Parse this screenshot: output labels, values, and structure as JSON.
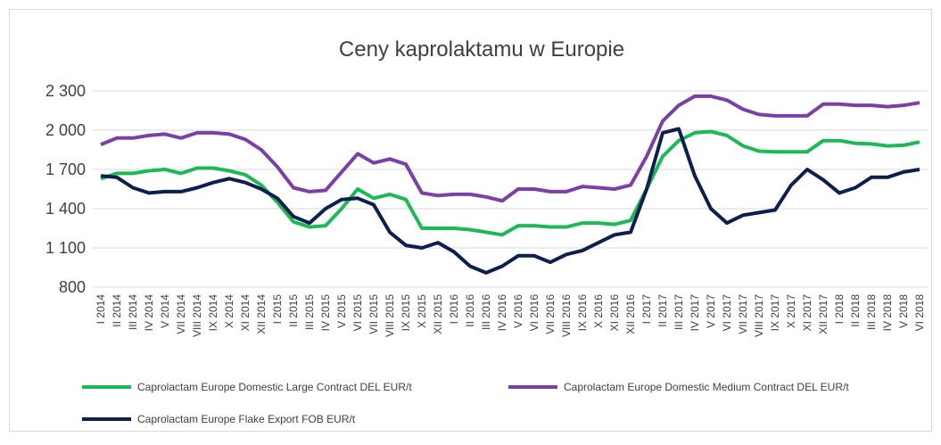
{
  "chart_data": {
    "type": "line",
    "title": "Ceny kaprolaktamu w Europie",
    "categories": [
      "I 2014",
      "II 2014",
      "III 2014",
      "IV 2014",
      "V 2014",
      "VII 2014",
      "VIII 2014",
      "IX 2014",
      "X 2014",
      "XI 2014",
      "XII 2014",
      "I 2015",
      "II 2015",
      "III 2015",
      "IV 2015",
      "V 2015",
      "VI 2015",
      "VII 2015",
      "VIII 2015",
      "IX 2015",
      "X 2015",
      "XII 2015",
      "I 2016",
      "II 2016",
      "III 2016",
      "IV 2016",
      "V 2016",
      "VI 2016",
      "VII 2016",
      "VIII 2016",
      "IX 2016",
      "X 2016",
      "XI 2016",
      "XII 2016",
      "I 2017",
      "II 2017",
      "III 2017",
      "IV 2017",
      "V 2017",
      "VI 2017",
      "VII 2017",
      "VIII 2017",
      "IX 2017",
      "X 2017",
      "XI 2017",
      "XII 2017",
      "I 2018",
      "II 2018",
      "III 2018",
      "IV 2018",
      "V 2018",
      "VI 2018"
    ],
    "series": [
      {
        "name": "Caprolactam Europe Domestic Large Contract DEL EUR/t",
        "color": "#1db954",
        "values": [
          1630,
          1670,
          1670,
          1690,
          1700,
          1670,
          1710,
          1710,
          1690,
          1660,
          1580,
          1450,
          1300,
          1260,
          1270,
          1400,
          1550,
          1480,
          1510,
          1470,
          1250,
          1250,
          1250,
          1240,
          1220,
          1200,
          1270,
          1270,
          1260,
          1260,
          1290,
          1290,
          1280,
          1310,
          1550,
          1800,
          1920,
          1980,
          1990,
          1960,
          1880,
          1840,
          1835,
          1835,
          1835,
          1920,
          1920,
          1900,
          1895,
          1880,
          1885,
          1910
        ]
      },
      {
        "name": "Caprolactam Europe Domestic Medium Contract DEL EUR/t",
        "color": "#7b3fa8",
        "values": [
          1890,
          1940,
          1940,
          1960,
          1970,
          1940,
          1980,
          1980,
          1970,
          1930,
          1850,
          1720,
          1560,
          1530,
          1540,
          1680,
          1820,
          1750,
          1780,
          1740,
          1520,
          1500,
          1510,
          1510,
          1490,
          1460,
          1550,
          1550,
          1530,
          1530,
          1570,
          1560,
          1550,
          1580,
          1800,
          2070,
          2190,
          2260,
          2260,
          2230,
          2160,
          2120,
          2110,
          2110,
          2110,
          2200,
          2200,
          2190,
          2190,
          2180,
          2190,
          2210
        ]
      },
      {
        "name": "Caprolactam Europe Flake Export FOB EUR/t",
        "color": "#0d1f4f",
        "values": [
          1650,
          1640,
          1560,
          1520,
          1530,
          1530,
          1560,
          1600,
          1630,
          1600,
          1550,
          1480,
          1340,
          1290,
          1400,
          1470,
          1480,
          1430,
          1220,
          1120,
          1100,
          1140,
          1070,
          960,
          910,
          960,
          1040,
          1040,
          990,
          1050,
          1080,
          1140,
          1200,
          1220,
          1550,
          1980,
          2010,
          1650,
          1400,
          1290,
          1350,
          1370,
          1390,
          1580,
          1700,
          1620,
          1520,
          1560,
          1640,
          1640,
          1680,
          1700
        ]
      }
    ],
    "ylim": [
      800,
      2300
    ],
    "yticks": [
      {
        "value": 800,
        "label": "800"
      },
      {
        "value": 1100,
        "label": "1 100"
      },
      {
        "value": 1400,
        "label": "1 400"
      },
      {
        "value": 1700,
        "label": "1 700"
      },
      {
        "value": 2000,
        "label": "2 000"
      },
      {
        "value": 2300,
        "label": "2 300"
      }
    ],
    "grid": true,
    "legend": "bottom"
  }
}
